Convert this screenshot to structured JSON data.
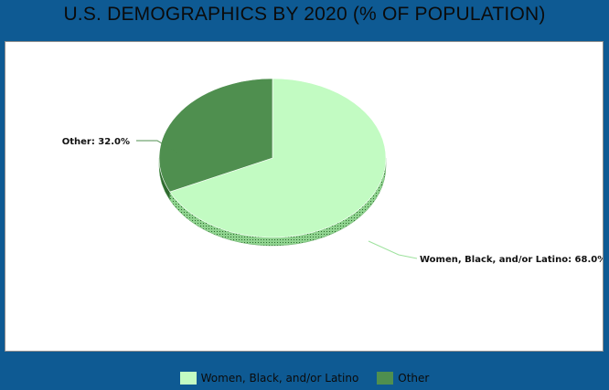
{
  "chart_data": {
    "type": "pie",
    "title": "U.S. DEMOGRAPHICS BY 2020 (% OF POPULATION)",
    "slices": [
      {
        "name": "Women, Black, and/or Latino",
        "value": 68.0,
        "label": "Women, Black, and/or Latino: 68.0%",
        "color": "#c2fbc2"
      },
      {
        "name": "Other",
        "value": 32.0,
        "label": "Other: 32.0%",
        "color": "#4f8f4f"
      }
    ],
    "legend": {
      "placement": "bottom",
      "entries": [
        "Women, Black, and/or Latino",
        "Other"
      ]
    },
    "grid": false
  },
  "style": {
    "background": "#0e5a93",
    "panel_background": "#ffffff"
  }
}
